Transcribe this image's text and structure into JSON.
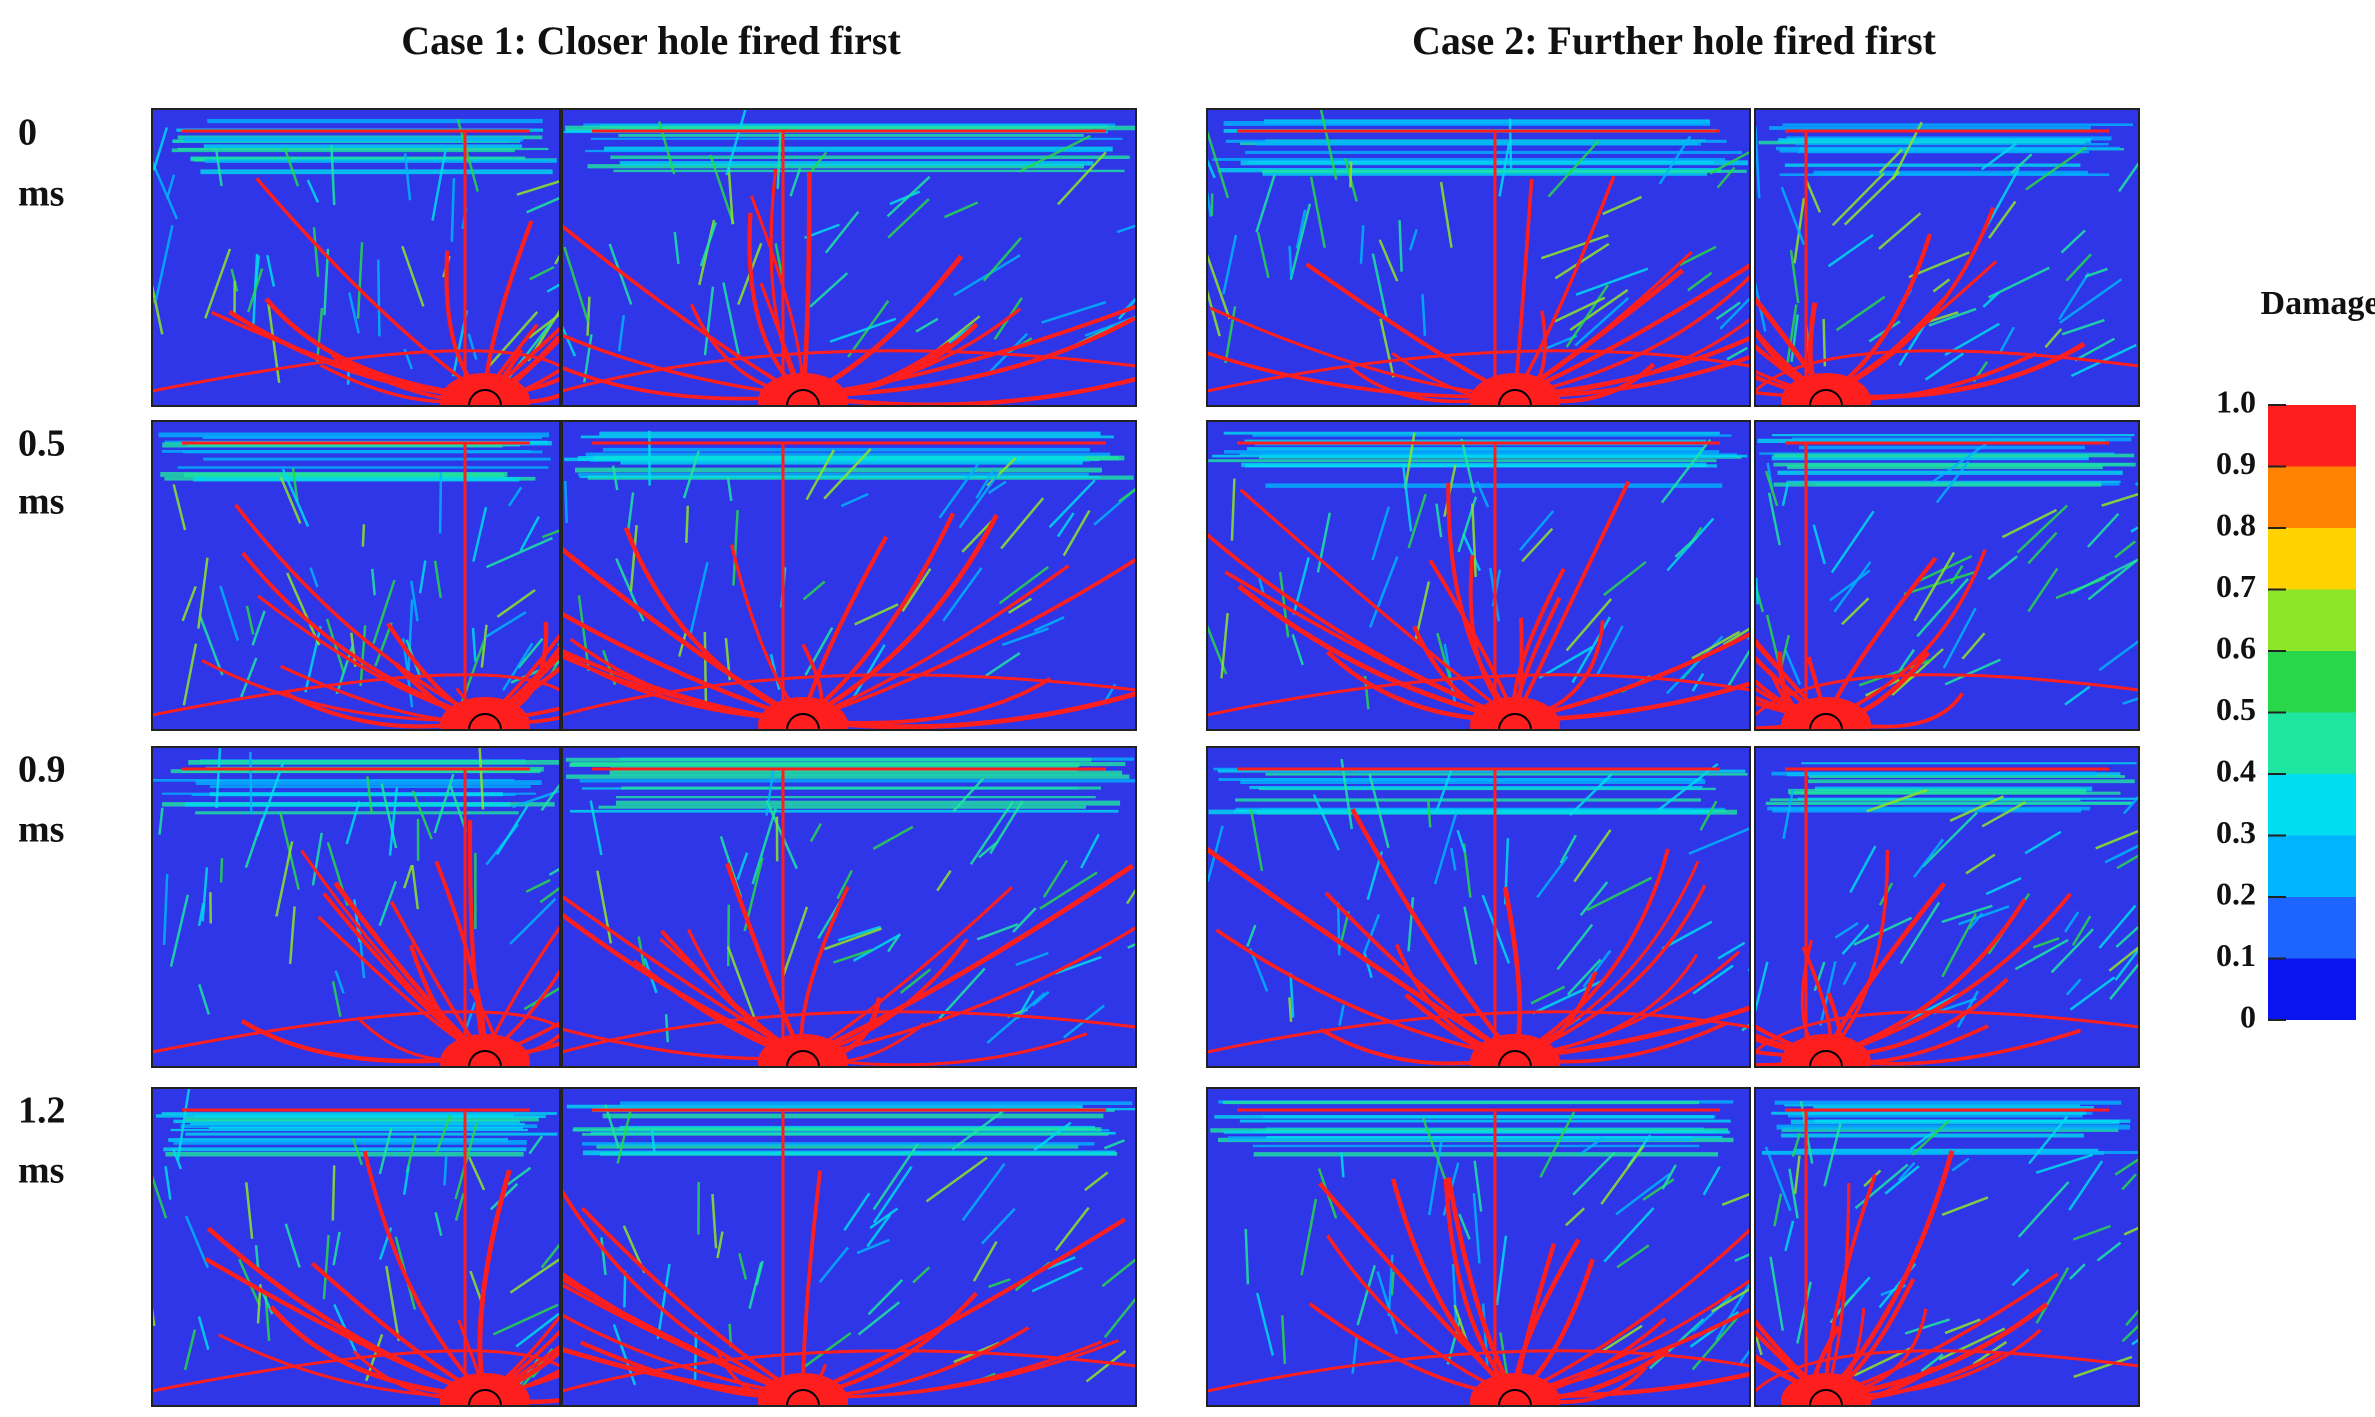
{
  "columns": [
    "Case 1: Closer hole fired first",
    "Case 2: Further hole fired first"
  ],
  "rows": [
    {
      "time": "0",
      "unit": "ms"
    },
    {
      "time": "0.5",
      "unit": "ms"
    },
    {
      "time": "0.9",
      "unit": "ms"
    },
    {
      "time": "1.2",
      "unit": "ms"
    }
  ],
  "colorbar": {
    "title": "Damage",
    "ticks": [
      {
        "value": 1,
        "label": "1.0"
      },
      {
        "value": 0.9,
        "label": "0.9"
      },
      {
        "value": 0.8,
        "label": "0.8"
      },
      {
        "value": 0.7,
        "label": "0.7"
      },
      {
        "value": 0.6,
        "label": "0.6"
      },
      {
        "value": 0.5,
        "label": "0.5"
      },
      {
        "value": 0.4,
        "label": "0.4"
      },
      {
        "value": 0.3,
        "label": "0.3"
      },
      {
        "value": 0.2,
        "label": "0.2"
      },
      {
        "value": 0.1,
        "label": "0.1"
      },
      0
    ],
    "colors": [
      "#0a14f0",
      "#1e64ff",
      "#00b4ff",
      "#00dcf0",
      "#1ee6a0",
      "#28d84a",
      "#8ee628",
      "#ffd200",
      "#ff8200",
      "#ff1e1e"
    ]
  }
}
